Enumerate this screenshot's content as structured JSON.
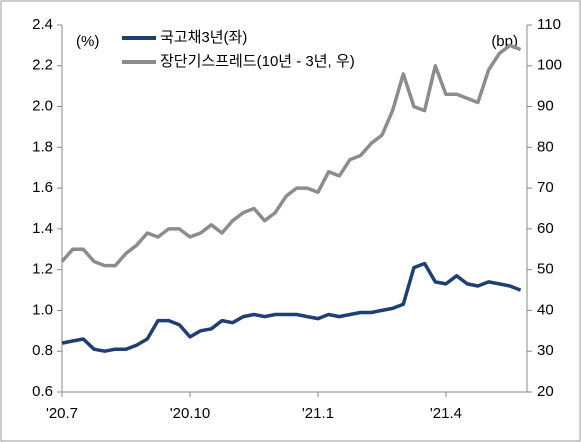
{
  "chart_data": {
    "type": "line",
    "y_label": "(%)",
    "y2_label": "(bp)",
    "x": [
      0,
      0.25,
      0.5,
      0.75,
      1,
      1.25,
      1.5,
      1.75,
      2,
      2.25,
      2.5,
      2.75,
      3,
      3.25,
      3.5,
      3.75,
      4,
      4.25,
      4.5,
      4.75,
      5,
      5.25,
      5.5,
      5.75,
      6,
      6.25,
      6.5,
      6.75,
      7,
      7.25,
      7.5,
      7.75,
      8,
      8.25,
      8.5,
      8.75,
      9,
      9.25,
      9.5,
      9.75,
      10,
      10.25,
      10.5,
      10.75
    ],
    "xlim": [
      0,
      10.9
    ],
    "xticks": [
      {
        "value": 0,
        "label": "'20.7"
      },
      {
        "value": 3,
        "label": "'20.10"
      },
      {
        "value": 6,
        "label": "'21.1"
      },
      {
        "value": 9,
        "label": "'21.4"
      }
    ],
    "ylim": [
      0.6,
      2.4
    ],
    "yticks": [
      {
        "value": 0.6,
        "label": "0.6"
      },
      {
        "value": 0.8,
        "label": "0.8"
      },
      {
        "value": 1.0,
        "label": "1.0"
      },
      {
        "value": 1.2,
        "label": "1.2"
      },
      {
        "value": 1.4,
        "label": "1.4"
      },
      {
        "value": 1.6,
        "label": "1.6"
      },
      {
        "value": 1.8,
        "label": "1.8"
      },
      {
        "value": 2.0,
        "label": "2.0"
      },
      {
        "value": 2.2,
        "label": "2.2"
      },
      {
        "value": 2.4,
        "label": "2.4"
      }
    ],
    "y2lim": [
      20,
      110
    ],
    "y2ticks": [
      20,
      30,
      40,
      50,
      60,
      70,
      80,
      90,
      100,
      110
    ],
    "series": [
      {
        "name": "국고채3년(좌)",
        "color": "#1f3f73",
        "values": [
          0.84,
          0.85,
          0.86,
          0.81,
          0.8,
          0.81,
          0.81,
          0.83,
          0.86,
          0.95,
          0.95,
          0.93,
          0.87,
          0.9,
          0.91,
          0.95,
          0.94,
          0.97,
          0.98,
          0.97,
          0.98,
          0.98,
          0.98,
          0.97,
          0.96,
          0.98,
          0.97,
          0.98,
          0.99,
          0.99,
          1.0,
          1.01,
          1.03,
          1.21,
          1.23,
          1.14,
          1.13,
          1.17,
          1.13,
          1.12,
          1.14,
          1.13,
          1.12,
          1.1
        ]
      },
      {
        "name": "장단기스프레드(10년 - 3년, 우)",
        "color": "#8c8c8c",
        "axis": "y2",
        "values": [
          52,
          55,
          55,
          52,
          51,
          51,
          54,
          56,
          59,
          58,
          60,
          60,
          58,
          59,
          61,
          59,
          62,
          64,
          65,
          62,
          64,
          68,
          70,
          70,
          69,
          74,
          73,
          77,
          78,
          81,
          83,
          89,
          98,
          90,
          89,
          100,
          93,
          93,
          92,
          91,
          99,
          103,
          105,
          104
        ]
      }
    ]
  }
}
